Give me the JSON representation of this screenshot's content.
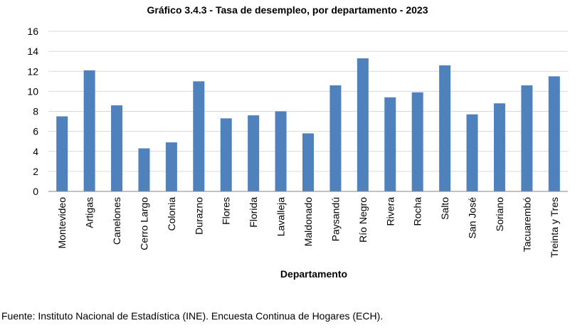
{
  "chart_data": {
    "type": "bar",
    "title": "Gráfico 3.4.3 -  Tasa de desempleo, por departamento - 2023",
    "xlabel": "Departamento",
    "ylabel": "",
    "ylim": [
      0,
      16
    ],
    "yticks": [
      "0",
      "2",
      "4",
      "6",
      "8",
      "10",
      "12",
      "14",
      "16"
    ],
    "grid": true,
    "legend": "none",
    "bar_color": "#4f81bd",
    "categories": [
      "Montevideo",
      "Artigas",
      "Canelones",
      "Cerro Largo",
      "Colonia",
      "Durazno",
      "Flores",
      "Florida",
      "Lavalleja",
      "Maldonado",
      "Paysandú",
      "Río Negro",
      "Rivera",
      "Rocha",
      "Salto",
      "San José",
      "Soriano",
      "Tacuarembó",
      "Treinta y Tres"
    ],
    "values": [
      7.5,
      12.1,
      8.6,
      4.3,
      4.9,
      11.0,
      7.3,
      7.6,
      8.0,
      5.8,
      10.6,
      13.3,
      9.4,
      9.9,
      12.6,
      7.7,
      8.8,
      10.6,
      11.5
    ]
  },
  "footer": {
    "source": "Fuente: Instituto Nacional de Estadística (INE). Encuesta Continua de Hogares (ECH)."
  }
}
